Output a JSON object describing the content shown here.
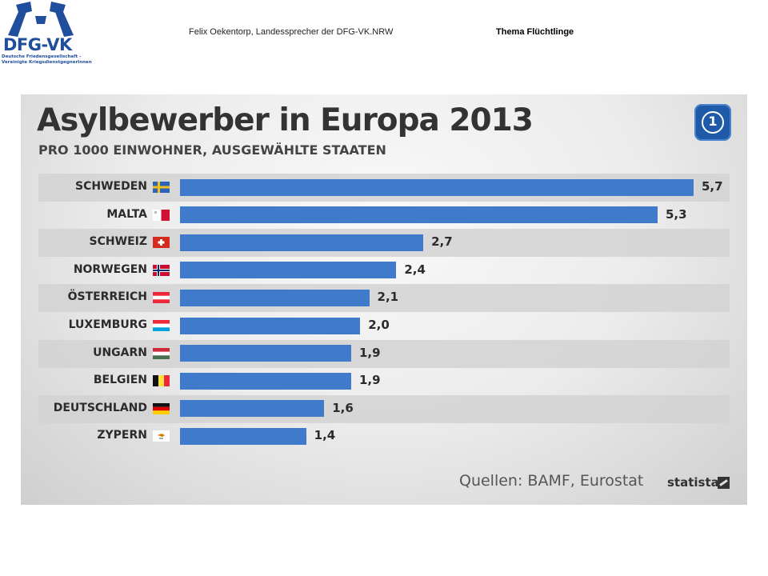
{
  "header": {
    "logo_text": "DFG-VK",
    "logo_sub_1": "Deutsche Friedensgesellschaft -",
    "logo_sub_2": "Vereinigte KriegsdienstgegnerInnen",
    "author": "Felix Oekentorp, Landessprecher der DFG-VK.NRW",
    "topic": "Thema Flüchtlinge"
  },
  "chart_data": {
    "type": "bar",
    "orientation": "horizontal",
    "title": "Asylbewerber in Europa 2013",
    "subtitle": "PRO 1000 EINWOHNER, AUSGEWÄHLTE STAATEN",
    "categories": [
      "SCHWEDEN",
      "MALTA",
      "SCHWEIZ",
      "NORWEGEN",
      "ÖSTERREICH",
      "LUXEMBURG",
      "UNGARN",
      "BELGIEN",
      "DEUTSCHLAND",
      "ZYPERN"
    ],
    "values": [
      5.7,
      5.3,
      2.7,
      2.4,
      2.1,
      2.0,
      1.9,
      1.9,
      1.6,
      1.4
    ],
    "value_labels": [
      "5,7",
      "5,3",
      "2,7",
      "2,4",
      "2,1",
      "2,0",
      "1,9",
      "1,9",
      "1,6",
      "1,4"
    ],
    "bar_color": "#3f7acb",
    "source": "Quellen: BAMF, Eurostat",
    "brand": "statista",
    "grid": false
  },
  "flag_icons": [
    "sweden-flag-icon",
    "malta-flag-icon",
    "switzerland-flag-icon",
    "norway-flag-icon",
    "austria-flag-icon",
    "luxembourg-flag-icon",
    "hungary-flag-icon",
    "belgium-flag-icon",
    "germany-flag-icon",
    "cyprus-flag-icon"
  ]
}
